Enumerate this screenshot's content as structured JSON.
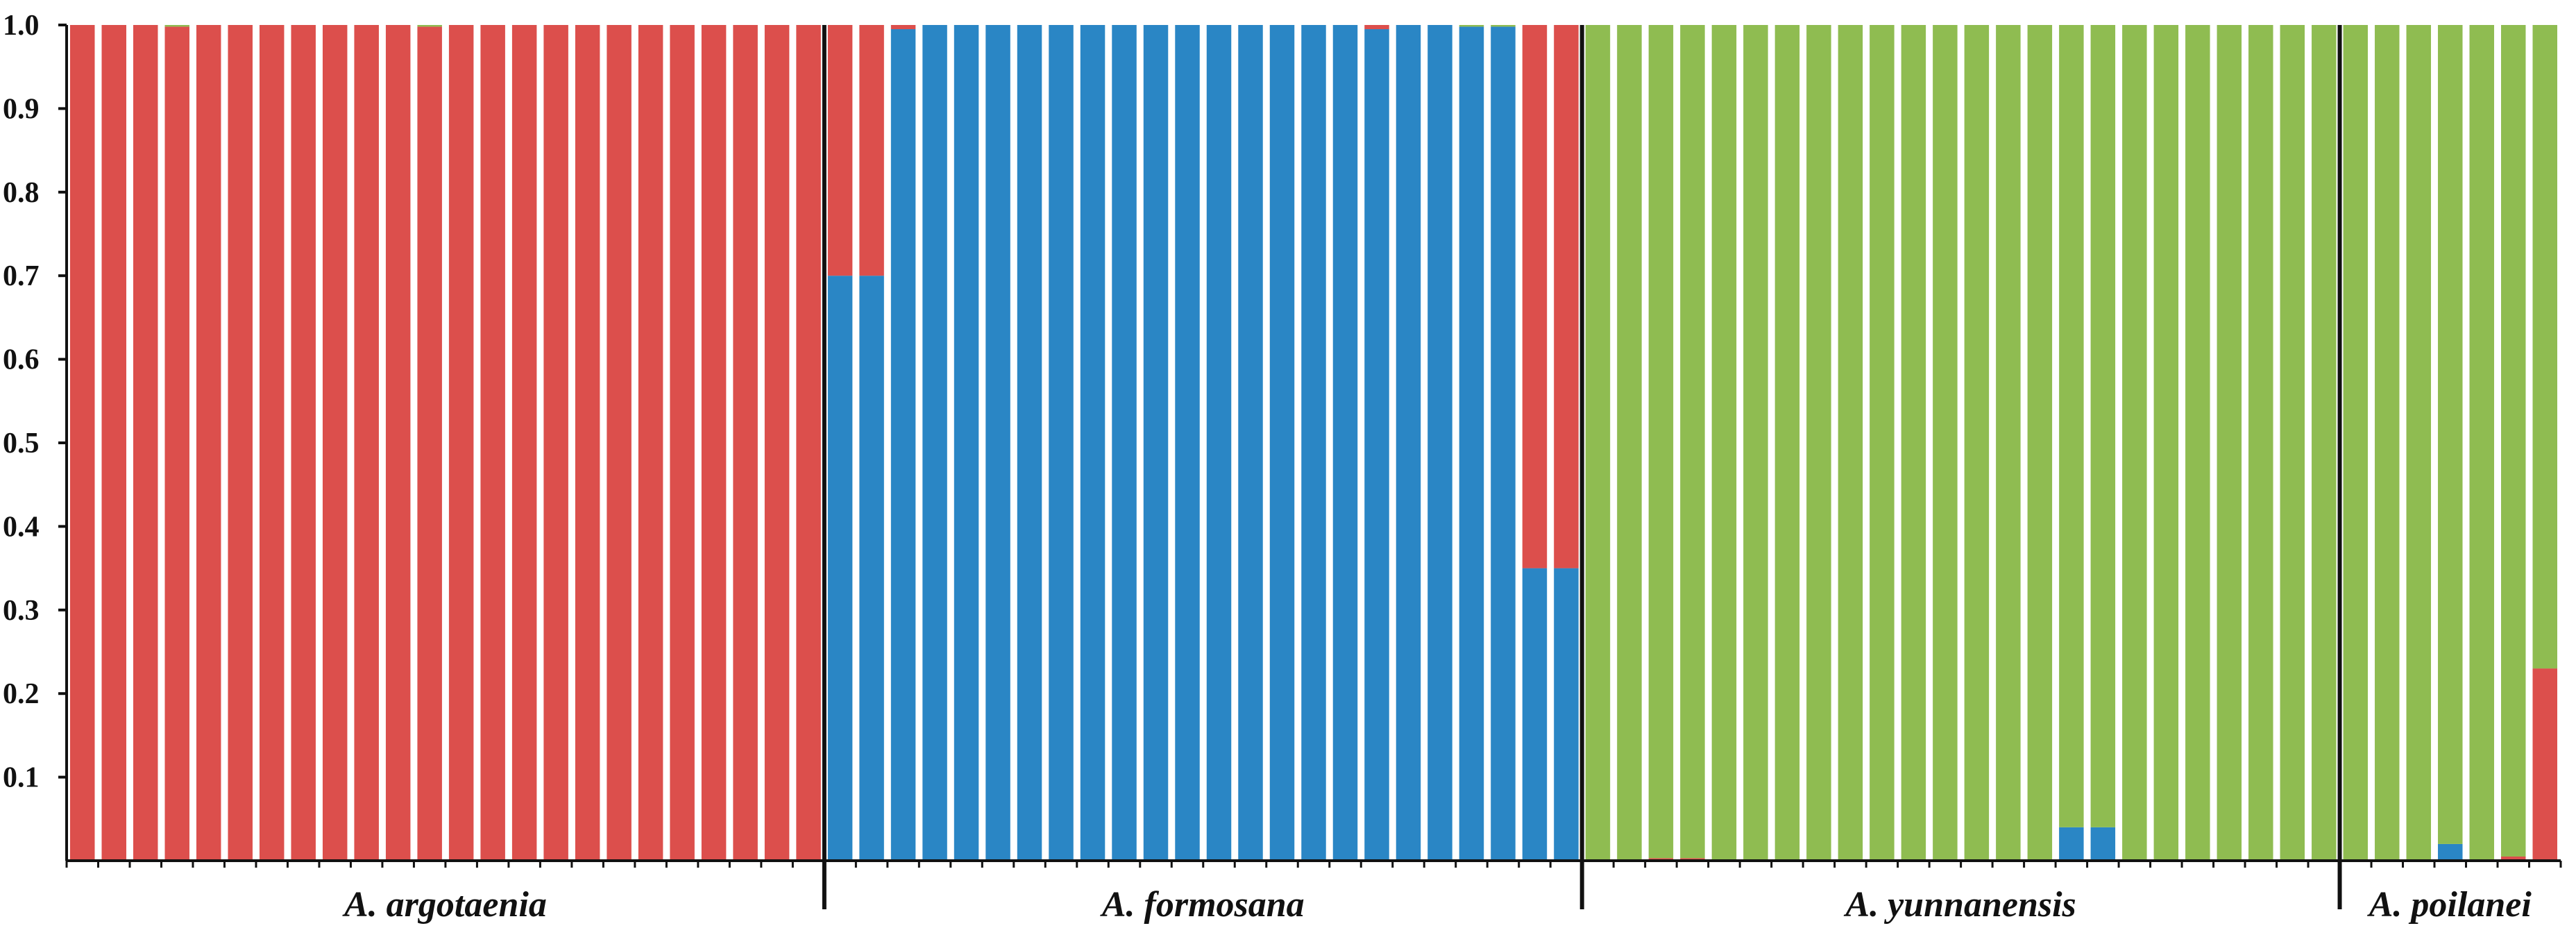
{
  "chart_data": {
    "type": "bar",
    "stacked": true,
    "title": "",
    "xlabel": "",
    "ylabel": "",
    "ylim": [
      0,
      1
    ],
    "yticks": [
      "1.0",
      "0.9",
      "0.8",
      "0.7",
      "0.6",
      "0.5",
      "0.4",
      "0.3",
      "0.2",
      "0.1"
    ],
    "grid": false,
    "legend": "none",
    "colors": {
      "red": "#dc4f4c",
      "blue": "#2a86c5",
      "green": "#8fbc51"
    },
    "groups": [
      {
        "label": "A. argotaenia",
        "samples": [
          {
            "red": 1.0
          },
          {
            "red": 1.0
          },
          {
            "red": 1.0
          },
          {
            "red": 0.998,
            "green": 0.002
          },
          {
            "red": 1.0
          },
          {
            "red": 1.0
          },
          {
            "red": 1.0
          },
          {
            "red": 1.0
          },
          {
            "red": 1.0
          },
          {
            "red": 1.0
          },
          {
            "red": 1.0
          },
          {
            "red": 0.998,
            "green": 0.002
          },
          {
            "red": 1.0
          },
          {
            "red": 1.0
          },
          {
            "red": 1.0
          },
          {
            "red": 1.0
          },
          {
            "red": 1.0
          },
          {
            "red": 1.0
          },
          {
            "red": 1.0
          },
          {
            "red": 1.0
          },
          {
            "red": 1.0
          },
          {
            "red": 1.0
          },
          {
            "red": 1.0
          },
          {
            "red": 1.0
          }
        ]
      },
      {
        "label": "A. formosana",
        "samples": [
          {
            "blue": 0.7,
            "red": 0.3
          },
          {
            "blue": 0.7,
            "red": 0.3
          },
          {
            "blue": 0.995,
            "red": 0.005
          },
          {
            "blue": 1.0
          },
          {
            "blue": 1.0
          },
          {
            "blue": 1.0
          },
          {
            "blue": 1.0
          },
          {
            "blue": 1.0
          },
          {
            "blue": 1.0
          },
          {
            "blue": 1.0
          },
          {
            "blue": 1.0
          },
          {
            "blue": 1.0
          },
          {
            "blue": 1.0
          },
          {
            "blue": 1.0
          },
          {
            "blue": 1.0
          },
          {
            "blue": 1.0
          },
          {
            "blue": 1.0
          },
          {
            "blue": 0.995,
            "red": 0.005
          },
          {
            "blue": 1.0
          },
          {
            "blue": 1.0
          },
          {
            "blue": 0.998,
            "green": 0.002
          },
          {
            "blue": 0.998,
            "green": 0.002
          },
          {
            "blue": 0.35,
            "red": 0.65
          },
          {
            "blue": 0.35,
            "red": 0.65
          }
        ]
      },
      {
        "label": "A. yunnanensis",
        "samples": [
          {
            "green": 1.0
          },
          {
            "green": 1.0
          },
          {
            "red": 0.003,
            "green": 0.997
          },
          {
            "red": 0.003,
            "green": 0.997
          },
          {
            "green": 1.0
          },
          {
            "green": 1.0
          },
          {
            "green": 1.0
          },
          {
            "green": 1.0
          },
          {
            "green": 1.0
          },
          {
            "green": 1.0
          },
          {
            "green": 1.0
          },
          {
            "green": 1.0
          },
          {
            "green": 1.0
          },
          {
            "green": 1.0
          },
          {
            "green": 1.0
          },
          {
            "blue": 0.04,
            "green": 0.96
          },
          {
            "blue": 0.04,
            "green": 0.96
          },
          {
            "green": 1.0
          },
          {
            "green": 1.0
          },
          {
            "green": 1.0
          },
          {
            "green": 1.0
          },
          {
            "green": 1.0
          },
          {
            "green": 1.0
          },
          {
            "green": 1.0
          }
        ]
      },
      {
        "label": "A. poilanei",
        "samples": [
          {
            "green": 1.0
          },
          {
            "green": 1.0
          },
          {
            "green": 1.0
          },
          {
            "blue": 0.02,
            "green": 0.98
          },
          {
            "green": 1.0
          },
          {
            "red": 0.005,
            "green": 0.995
          },
          {
            "red": 0.23,
            "green": 0.77
          }
        ]
      }
    ]
  }
}
